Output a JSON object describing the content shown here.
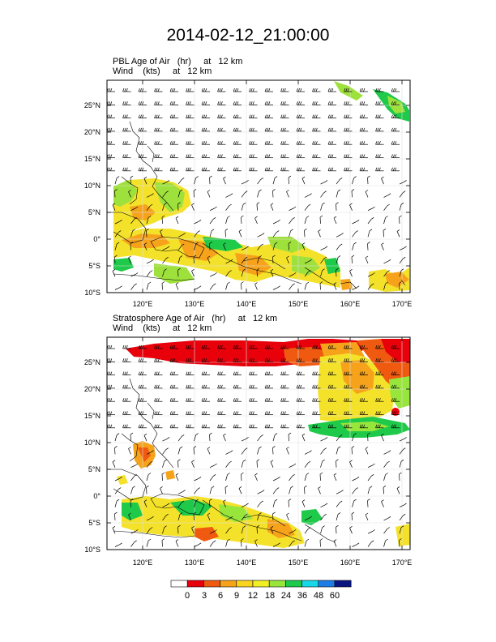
{
  "title": "2014-02-12_21:00:00",
  "panels": [
    {
      "line1": "PBL Age of Air   (hr)     at   12 km",
      "line2": "Wind    (kts)     at   12 km",
      "lat_labels": [
        "25°N",
        "20°N",
        "15°N",
        "10°N",
        "5°N",
        "0°",
        "5°S",
        "10°S"
      ],
      "lon_labels": [
        "120°E",
        "130°E",
        "140°E",
        "150°E",
        "160°E",
        "170°E"
      ]
    },
    {
      "line1": "Stratosphere Age of Air   (hr)     at   12 km",
      "line2": "Wind    (kts)     at   12 km",
      "lat_labels": [
        "25°N",
        "20°N",
        "15°N",
        "10°N",
        "5°N",
        "0°",
        "5°S",
        "10°S"
      ],
      "lon_labels": [
        "120°E",
        "130°E",
        "140°E",
        "150°E",
        "160°E",
        "170°E"
      ]
    }
  ],
  "colorbar": {
    "labels": [
      "0",
      "3",
      "6",
      "9",
      "12",
      "18",
      "24",
      "36",
      "48",
      "60"
    ],
    "colors": [
      "#ffffff",
      "#e8000b",
      "#f05a10",
      "#f6a31b",
      "#f9d51e",
      "#f1f024",
      "#98e63c",
      "#1fc94a",
      "#18d8e8",
      "#1f7ee6",
      "#0a1680"
    ]
  }
}
